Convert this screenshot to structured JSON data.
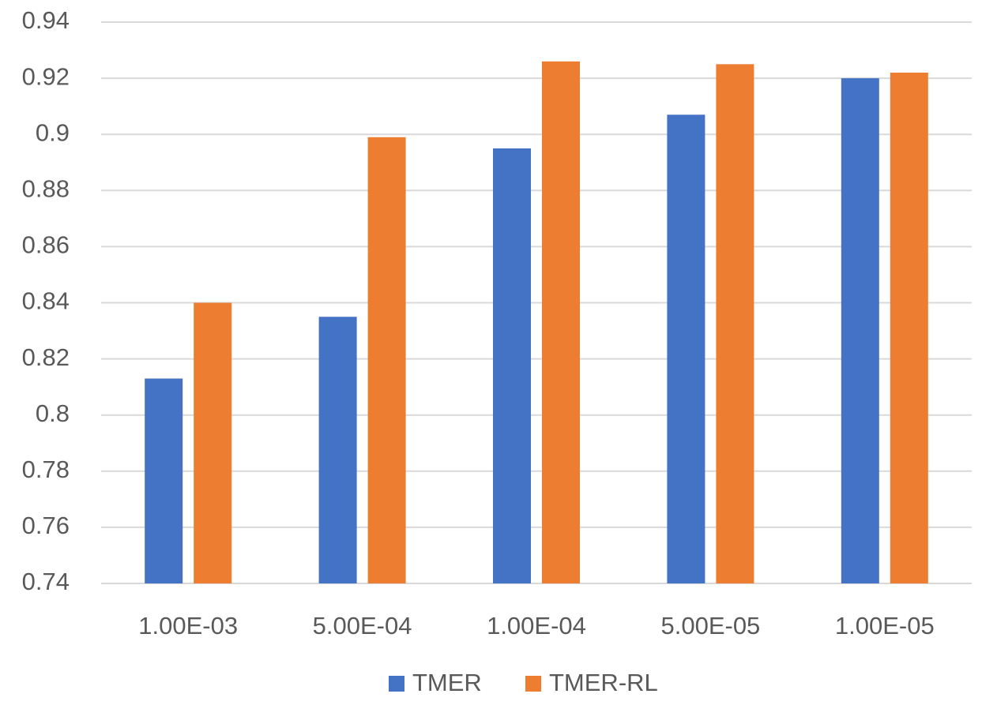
{
  "chart_data": {
    "type": "bar",
    "categories": [
      "1.00E-03",
      "5.00E-04",
      "1.00E-04",
      "5.00E-05",
      "1.00E-05"
    ],
    "series": [
      {
        "name": "TMER",
        "color": "#4472c4",
        "values": [
          0.813,
          0.835,
          0.895,
          0.907,
          0.92
        ]
      },
      {
        "name": "TMER-RL",
        "color": "#ed7d31",
        "values": [
          0.84,
          0.899,
          0.926,
          0.925,
          0.922
        ]
      }
    ],
    "ylim": [
      0.74,
      0.94
    ],
    "yticks": [
      0.74,
      0.76,
      0.78,
      0.8,
      0.82,
      0.84,
      0.86,
      0.88,
      0.9,
      0.92,
      0.94
    ],
    "grid": true,
    "legend": "bottom"
  }
}
